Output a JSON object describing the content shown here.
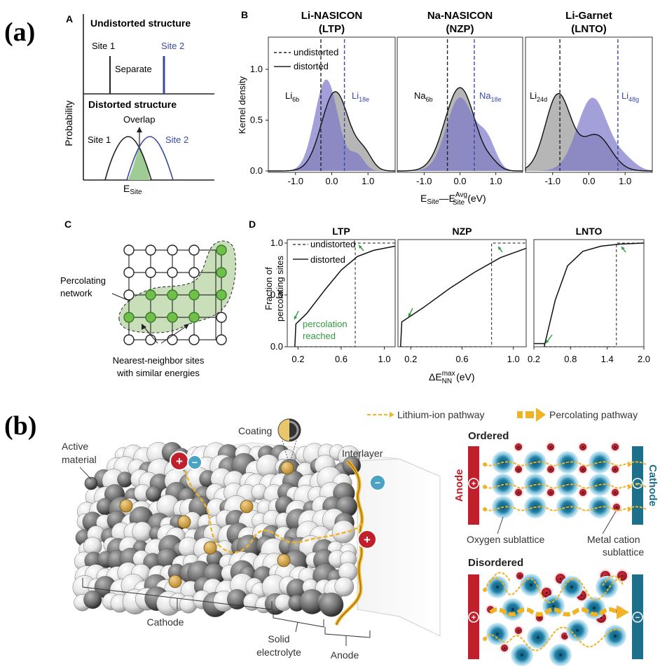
{
  "fig_a_label": "(a)",
  "fig_b_label": "(b)",
  "panelA": {
    "letter": "A",
    "title_top": "Undistorted structure",
    "site1": "Site 1",
    "site2": "Site 2",
    "separate": "Separate",
    "title_bottom": "Distorted structure",
    "overlap": "Overlap",
    "ylabel": "Probability",
    "xlabel_main": "E",
    "xlabel_sub": "Site"
  },
  "panelB": {
    "letter": "B",
    "subplots": [
      {
        "title1": "Li-NASICON",
        "title2": "(LTP)",
        "lab1": "Li",
        "lab1sub": "6b",
        "lab2": "Li",
        "lab2sub": "18e"
      },
      {
        "title1": "Na-NASICON",
        "title2": "(NZP)",
        "lab1": "Na",
        "lab1sub": "6b",
        "lab2": "Na",
        "lab2sub": "18e"
      },
      {
        "title1": "Li-Garnet",
        "title2": "(LNTO)",
        "lab1": "Li",
        "lab1sub": "24d",
        "lab2": "Li",
        "lab2sub": "48g"
      }
    ],
    "ylabel": "Kernel density",
    "yticks": [
      "0.0",
      "0.5",
      "1.0"
    ],
    "xticks": [
      "-1.0",
      "0.0",
      "1.0"
    ],
    "legend_undistorted": "undistorted",
    "legend_distorted": "distorted",
    "xlabel_a": "E",
    "xlabel_a_sub": "Site",
    "xlabel_dash": "—E",
    "xlabel_b_sup": "Avg",
    "xlabel_b_sub": "Site",
    "xlabel_unit": "(eV)"
  },
  "panelC": {
    "letter": "C",
    "label_network": "Percolating\nnetwork",
    "label_sites": "Nearest-neighbor sites\nwith similar energies"
  },
  "panelD": {
    "letter": "D",
    "titles": [
      "LTP",
      "NZP",
      "LNTO"
    ],
    "ylabel1": "Fraction of",
    "ylabel2": "percolating sites",
    "yticks": [
      "0.0",
      "0.5",
      "1.0"
    ],
    "xticks_1": [
      "0.2",
      "0.6",
      "1.0"
    ],
    "xticks_2": [
      "0.2",
      "0.6",
      "1.0"
    ],
    "xticks_3": [
      "0.2",
      "0.8",
      "1.4",
      "2.0"
    ],
    "legend_undistorted": "undistorted",
    "legend_distorted": "distorted",
    "percolation_note": "percolation\nreached",
    "xlabel_delta": "ΔE",
    "xlabel_sup": "max",
    "xlabel_sub": "NN",
    "xlabel_unit": "(eV)"
  },
  "panelBottom": {
    "legend_li": "Lithium-ion pathway",
    "legend_perc": "Percolating pathway",
    "active_material": "Active\nmaterial",
    "coating": "Coating",
    "interlayer": "Interlayer",
    "cathode": "Cathode",
    "solid_electrolyte": "Solid\nelectrolyte",
    "anode": "Anode",
    "ordered": "Ordered",
    "disordered": "Disordered",
    "anode_vertical": "Anode",
    "cathode_vertical": "Cathode",
    "oxygen": "Oxygen sublattice",
    "metal_cation": "Metal cation\nsublattice"
  },
  "colors": {
    "blue": "#3a4aa0",
    "blue_fill": "#7b76c9",
    "gray_fill": "#a9a9a9",
    "green": "#2e9a3e",
    "green_fill": "#c8dfb9",
    "gold": "#f0b323",
    "red_bar": "#c0202b",
    "teal_bar": "#1e6f8a"
  }
}
